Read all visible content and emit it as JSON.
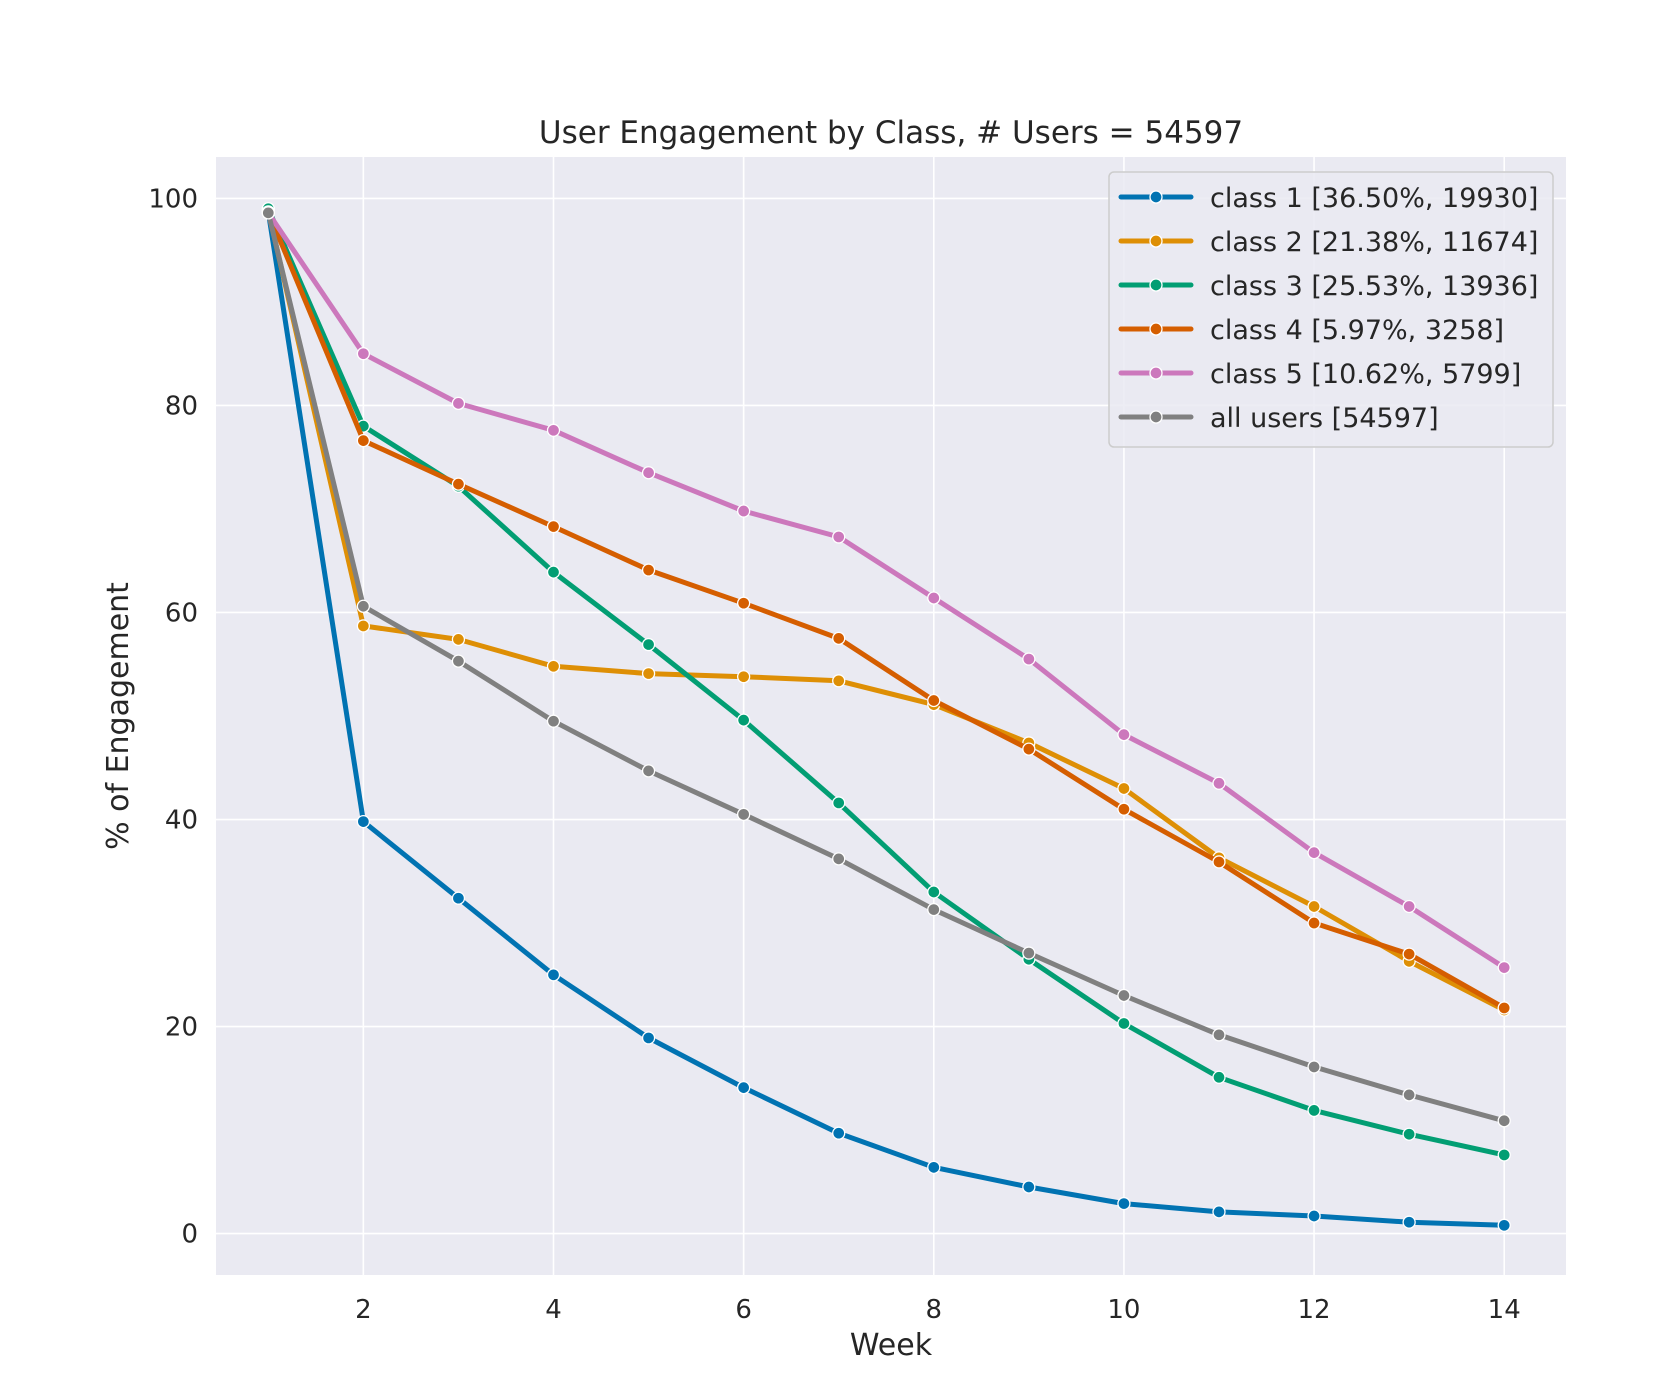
{
  "chart_data": {
    "type": "line",
    "title": "User Engagement by Class, # Users = 54597",
    "xlabel": "Week",
    "ylabel": "% of Engagement",
    "x": [
      1,
      2,
      3,
      4,
      5,
      6,
      7,
      8,
      9,
      10,
      11,
      12,
      13,
      14
    ],
    "xlim": [
      0.45,
      14.65
    ],
    "ylim": [
      -4,
      104
    ],
    "xticks": [
      2,
      4,
      6,
      8,
      10,
      12,
      14
    ],
    "yticks": [
      0,
      20,
      40,
      60,
      80,
      100
    ],
    "grid": true,
    "legend_position": "top-right",
    "background_color": "#eaeaf2",
    "series": [
      {
        "name": "class 1 [36.50%, 19930]",
        "color": "#0173b2",
        "values": [
          98.7,
          39.8,
          32.4,
          25.0,
          18.9,
          14.1,
          9.7,
          6.4,
          4.5,
          2.9,
          2.1,
          1.7,
          1.1,
          0.8
        ]
      },
      {
        "name": "class 2 [21.38%, 11674]",
        "color": "#de8f05",
        "values": [
          98.8,
          58.7,
          57.4,
          54.8,
          54.1,
          53.8,
          53.4,
          51.1,
          47.4,
          43.0,
          36.3,
          31.6,
          26.3,
          21.6
        ]
      },
      {
        "name": "class 3 [25.53%, 13936]",
        "color": "#029e73",
        "values": [
          99.0,
          78.0,
          72.2,
          63.9,
          56.9,
          49.6,
          41.6,
          33.0,
          26.5,
          20.3,
          15.1,
          11.9,
          9.6,
          7.6
        ]
      },
      {
        "name": "class 4 [5.97%, 3258]",
        "color": "#d55e00",
        "values": [
          98.7,
          76.6,
          72.4,
          68.3,
          64.1,
          60.9,
          57.5,
          51.5,
          46.8,
          41.0,
          35.9,
          30.0,
          27.0,
          21.8
        ]
      },
      {
        "name": "class 5 [10.62%, 5799]",
        "color": "#cc78bc",
        "values": [
          98.6,
          85.0,
          80.2,
          77.6,
          73.5,
          69.8,
          67.3,
          61.4,
          55.5,
          48.2,
          43.5,
          36.8,
          31.6,
          25.7
        ]
      },
      {
        "name": "all users [54597]",
        "color": "#808080",
        "values": [
          98.6,
          60.6,
          55.3,
          49.5,
          44.7,
          40.5,
          36.2,
          31.3,
          27.1,
          23.0,
          19.2,
          16.1,
          13.4,
          10.9
        ]
      }
    ]
  }
}
